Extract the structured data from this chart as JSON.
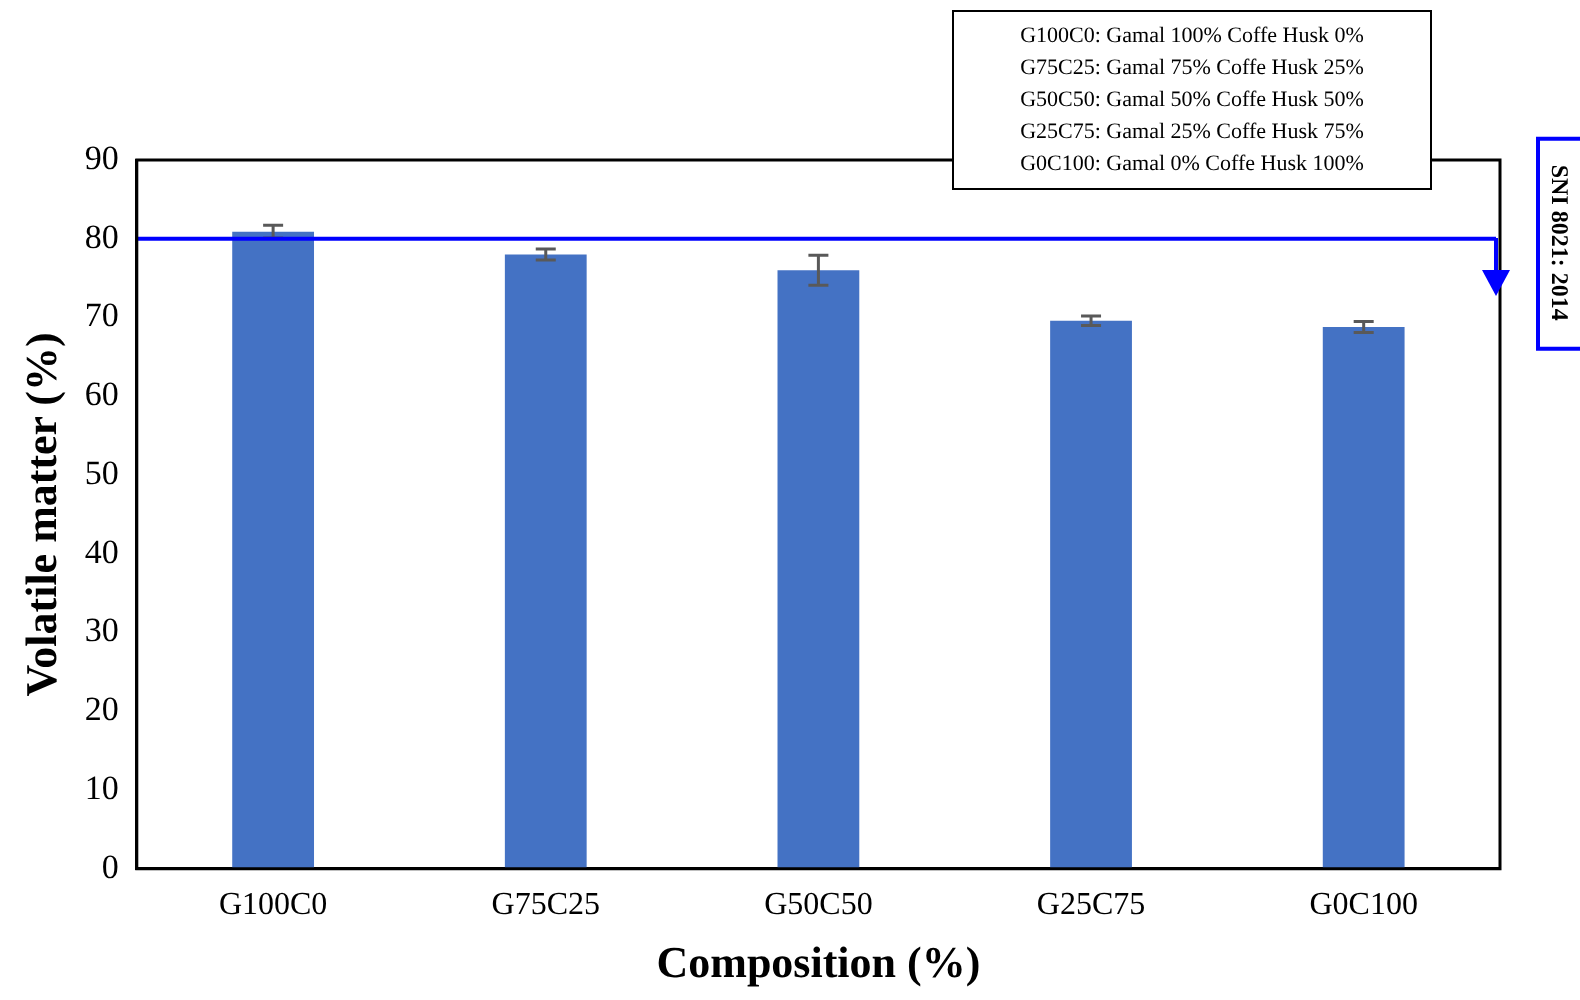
{
  "chart_data": {
    "type": "bar",
    "xlabel": "Composition (%)",
    "ylabel": "Volatile matter (%)",
    "categories": [
      "G100C0",
      "G75C25",
      "G50C50",
      "G25C75",
      "G0C100"
    ],
    "values": [
      80.9,
      78.0,
      76.0,
      69.6,
      68.8
    ],
    "errors": [
      0.8,
      0.7,
      1.9,
      0.6,
      0.7
    ],
    "color": "#4472c4",
    "ylim": [
      0,
      90
    ],
    "yticks": [
      0,
      10,
      20,
      30,
      40,
      50,
      60,
      70,
      80,
      90
    ],
    "grid": false,
    "legend": false,
    "ref_lines": [
      {
        "axis": "y",
        "value": 80,
        "color": "#0000ff"
      }
    ],
    "annotations": [
      "G100C0: Gamal 100% Coffe Husk 0%",
      "G75C25: Gamal 75% Coffe Husk 25%",
      "G50C50: Gamal 50% Coffe Husk 50%",
      "G25C75: Gamal 25% Coffe Husk 75%",
      "G0C100: Gamal 0% Coffe Husk 100%",
      "SNI 8021: 2014"
    ]
  }
}
